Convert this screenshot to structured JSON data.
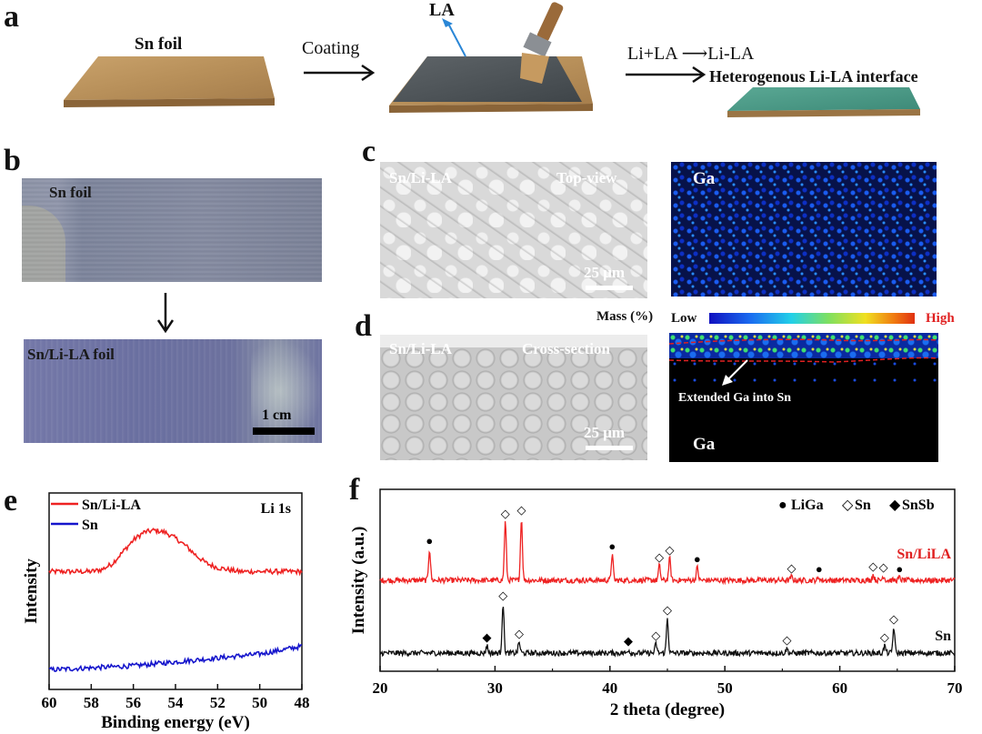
{
  "panel_labels": {
    "a": "a",
    "b": "b",
    "c": "c",
    "d": "d",
    "e": "e",
    "f": "f"
  },
  "schematic": {
    "sn_foil_label": "Sn foil",
    "coating_label": "Coating",
    "la_label": "LA",
    "reaction_label": "Li+LA ⟶Li-LA",
    "interface_label": "Heterogenous Li-LA interface"
  },
  "photos": {
    "top_label": "Sn foil",
    "bottom_label": "Sn/Li-LA foil",
    "scale_label": "1 cm"
  },
  "sem_top": {
    "sample_label": "Sn/Li-LA",
    "view_label": "Top-view",
    "scale_label": "25 μm",
    "map_element": "Ga"
  },
  "colorbar": {
    "title": "Mass (%)",
    "low_label": "Low",
    "high_label": "High"
  },
  "sem_cross": {
    "sample_label": "Sn/Li-LA",
    "view_label": "Cross-section",
    "scale_label": "25 μm",
    "annotation": "Extended Ga into Sn",
    "map_element": "Ga"
  },
  "chart_data": [
    {
      "panel": "e",
      "type": "line",
      "annotation": "Li 1s",
      "xlabel": "Binding energy (eV)",
      "ylabel": "Intensity",
      "x_ticks": [
        60,
        58,
        56,
        54,
        52,
        50,
        48
      ],
      "xlim": [
        60,
        48
      ],
      "x_reversed": true,
      "legend": "top-left",
      "series": [
        {
          "name": "Sn/Li-LA",
          "color": "#ee2222",
          "x": [
            60,
            59,
            58,
            57.5,
            57,
            56.5,
            56,
            55.5,
            55,
            54.5,
            54,
            53.5,
            53,
            52.5,
            52,
            51.5,
            51,
            50,
            49,
            48
          ],
          "y": [
            0.6,
            0.6,
            0.6,
            0.61,
            0.64,
            0.7,
            0.76,
            0.8,
            0.81,
            0.8,
            0.77,
            0.73,
            0.68,
            0.64,
            0.62,
            0.61,
            0.6,
            0.6,
            0.6,
            0.6
          ]
        },
        {
          "name": "Sn",
          "color": "#1515cc",
          "x": [
            60,
            58,
            56,
            54,
            52,
            50,
            49,
            48
          ],
          "y": [
            0.1,
            0.11,
            0.12,
            0.14,
            0.16,
            0.18,
            0.2,
            0.22
          ]
        }
      ]
    },
    {
      "panel": "f",
      "type": "line",
      "xlabel": "2 theta (degree)",
      "ylabel": "Intensity (a.u.)",
      "x_ticks": [
        20,
        30,
        40,
        50,
        60,
        70
      ],
      "xlim": [
        20,
        70
      ],
      "legend_items": [
        {
          "symbol": "●",
          "label": "LiGa"
        },
        {
          "symbol": "◇",
          "label": "Sn"
        },
        {
          "symbol": "◆",
          "label": "SnSb"
        }
      ],
      "series": [
        {
          "name": "Sn/LiLA",
          "color": "#ee2222",
          "baseline": 0.5,
          "peaks": [
            {
              "x": 24.3,
              "h": 0.17,
              "phase": "LiGa"
            },
            {
              "x": 30.9,
              "h": 0.32,
              "phase": "Sn"
            },
            {
              "x": 32.3,
              "h": 0.34,
              "phase": "Sn"
            },
            {
              "x": 40.2,
              "h": 0.14,
              "phase": "LiGa"
            },
            {
              "x": 44.3,
              "h": 0.08,
              "phase": "Sn"
            },
            {
              "x": 45.2,
              "h": 0.12,
              "phase": "Sn"
            },
            {
              "x": 47.6,
              "h": 0.07,
              "phase": "LiGa"
            },
            {
              "x": 55.8,
              "h": 0.02,
              "phase": "Sn"
            },
            {
              "x": 58.2,
              "h": 0.015,
              "phase": "LiGa"
            },
            {
              "x": 62.9,
              "h": 0.03,
              "phase": "Sn"
            },
            {
              "x": 63.8,
              "h": 0.025,
              "phase": "Sn"
            },
            {
              "x": 65.2,
              "h": 0.015,
              "phase": "LiGa"
            }
          ]
        },
        {
          "name": "Sn",
          "color": "#111111",
          "baseline": 0.1,
          "peaks": [
            {
              "x": 29.3,
              "h": 0.04,
              "phase": "SnSb"
            },
            {
              "x": 30.7,
              "h": 0.27,
              "phase": "Sn"
            },
            {
              "x": 32.1,
              "h": 0.06,
              "phase": "Sn"
            },
            {
              "x": 41.6,
              "h": 0.02,
              "phase": "SnSb"
            },
            {
              "x": 44.0,
              "h": 0.05,
              "phase": "Sn"
            },
            {
              "x": 45.0,
              "h": 0.19,
              "phase": "Sn"
            },
            {
              "x": 55.4,
              "h": 0.025,
              "phase": "Sn"
            },
            {
              "x": 63.9,
              "h": 0.04,
              "phase": "Sn"
            },
            {
              "x": 64.7,
              "h": 0.14,
              "phase": "Sn"
            }
          ]
        }
      ]
    }
  ]
}
